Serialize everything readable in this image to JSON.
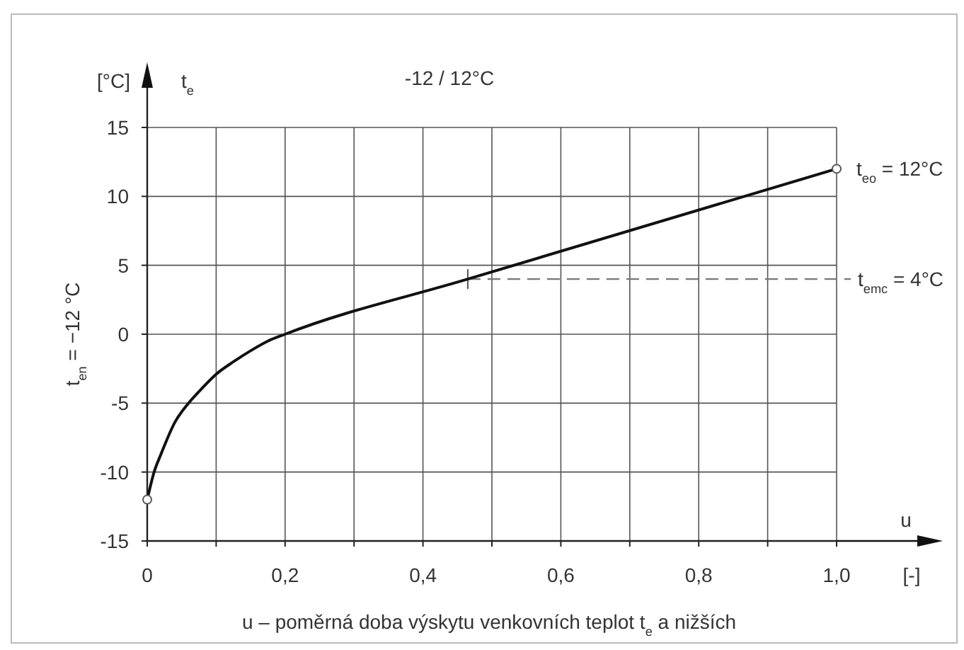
{
  "chart_data": {
    "type": "line",
    "title": "-12 / 12°C",
    "ylabel": "[°C]",
    "xlabel": "u – poměrná doba výskytu venkovních teplot t$_{e}$ a nižších",
    "annotations": [
      "t$_{e}$",
      "t$_{en}$ = −12 °C",
      "u",
      "[-]",
      {
        "text": "t$_{eo}$ = 12°C",
        "x": 1.0,
        "y": 12
      }
    ],
    "series": [
      {
        "color": "#111111",
        "x": [
          0,
          0.01,
          0.02,
          0.04,
          0.06,
          0.08,
          0.1,
          0.125,
          0.15,
          0.175,
          0.2,
          0.465,
          1.0
        ],
        "values": [
          -12,
          -10,
          -8.7,
          -6.4,
          -5,
          -3.9,
          -2.9,
          -2,
          -1.2,
          -0.5,
          0,
          4,
          12
        ]
      }
    ],
    "ref_lines": [
      {
        "axis": "y",
        "value": 4,
        "label": "t$_{emc}$ = 4°C",
        "color": "#777777",
        "line_style": "dashed"
      }
    ],
    "xlim": [
      0,
      1.0
    ],
    "xticks": [
      0,
      {
        "value": 0.1,
        "label": null
      },
      {
        "value": 0.2,
        "label": "0,2"
      },
      {
        "value": 0.3,
        "label": null
      },
      {
        "value": 0.4,
        "label": "0,4"
      },
      {
        "value": 0.5,
        "label": null
      },
      {
        "value": 0.6,
        "label": "0,6"
      },
      {
        "value": 0.7,
        "label": null
      },
      {
        "value": 0.8,
        "label": "0,8"
      },
      {
        "value": 0.9,
        "label": null
      },
      {
        "value": 1.0,
        "label": "1,0"
      }
    ],
    "ylim": [
      -15,
      15
    ],
    "yticks": [
      -15,
      -10,
      -5,
      0,
      5,
      10,
      15
    ],
    "grid": true,
    "marker": "none",
    "line_style": "solid"
  }
}
